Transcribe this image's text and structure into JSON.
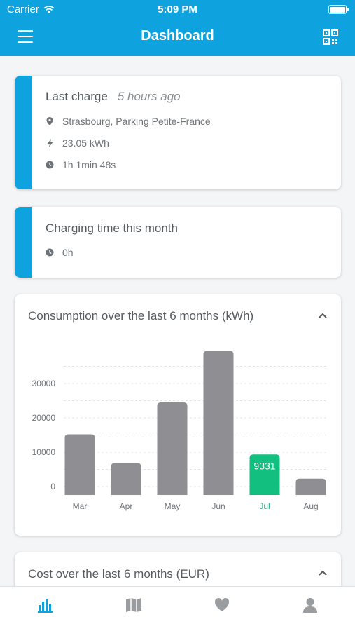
{
  "status_bar": {
    "carrier": "Carrier",
    "time": "5:09 PM"
  },
  "header": {
    "title": "Dashboard",
    "menu_icon": "hamburger-menu-icon",
    "qr_icon": "qr-code-icon"
  },
  "last_charge": {
    "title": "Last charge",
    "ago": "5 hours ago",
    "location": "Strasbourg, Parking Petite-France",
    "energy": "23.05 kWh",
    "duration": "1h 1min 48s"
  },
  "charging_time": {
    "title": "Charging time this month",
    "value": "0h"
  },
  "consumption": {
    "title": "Consumption over the last 6 months (kWh)",
    "chart_data": {
      "type": "bar",
      "categories": [
        "Mar",
        "Apr",
        "May",
        "Jun",
        "Jul",
        "Aug"
      ],
      "values": [
        15200,
        6800,
        24500,
        39500,
        9331,
        2300
      ],
      "yticks": [
        0,
        10000,
        20000,
        30000
      ],
      "ylim": [
        0,
        40000
      ],
      "highlight_index": 4,
      "highlight_label": "9331",
      "bar_color": "#8e8e93",
      "highlight_color": "#12bf7e"
    }
  },
  "cost": {
    "title": "Cost over the last 6 months (EUR)"
  },
  "tabbar": {
    "active_color": "#0ea2df",
    "inactive_color": "#9a9da0"
  }
}
